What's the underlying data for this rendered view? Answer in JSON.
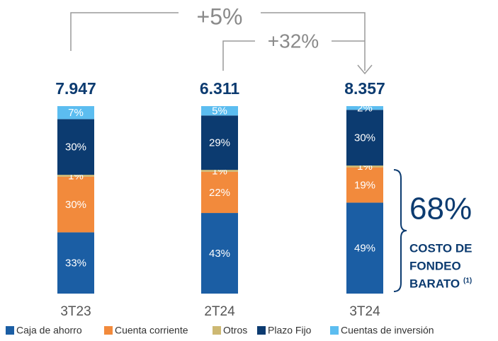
{
  "chart_data": {
    "type": "stacked_bar_100",
    "categories": [
      "3T23",
      "2T24",
      "3T24"
    ],
    "series": [
      {
        "name": "Caja de ahorro",
        "color": "#1b5ea4",
        "values": [
          33,
          43,
          49
        ],
        "value_labels": [
          "33%",
          "43%",
          "49%"
        ]
      },
      {
        "name": "Cuenta corriente",
        "color": "#f28a3c",
        "values": [
          30,
          22,
          19
        ],
        "value_labels": [
          "30%",
          "22%",
          "19%"
        ]
      },
      {
        "name": "Otros",
        "color": "#cdb872",
        "values": [
          1,
          1,
          1
        ],
        "value_labels": [
          "1%",
          "1%",
          "1%"
        ]
      },
      {
        "name": "Plazo Fijo",
        "color": "#0c3b70",
        "values": [
          30,
          29,
          30
        ],
        "value_labels": [
          "30%",
          "29%",
          "30%"
        ]
      },
      {
        "name": "Cuentas de inversión",
        "color": "#5cbdf0",
        "values": [
          7,
          5,
          2
        ],
        "value_labels": [
          "7%",
          "5%",
          "2%"
        ]
      }
    ],
    "totals": [
      7947,
      6311,
      8357
    ],
    "total_labels": [
      "7.947",
      "6.311",
      "8.357"
    ],
    "annotations": {
      "change_total": "+5%",
      "change_quarter": "+32%",
      "cheap_share": "68%",
      "cheap_label": [
        "COSTO DE",
        "FONDEO",
        "BARATO"
      ],
      "footnote": "(1)"
    }
  }
}
